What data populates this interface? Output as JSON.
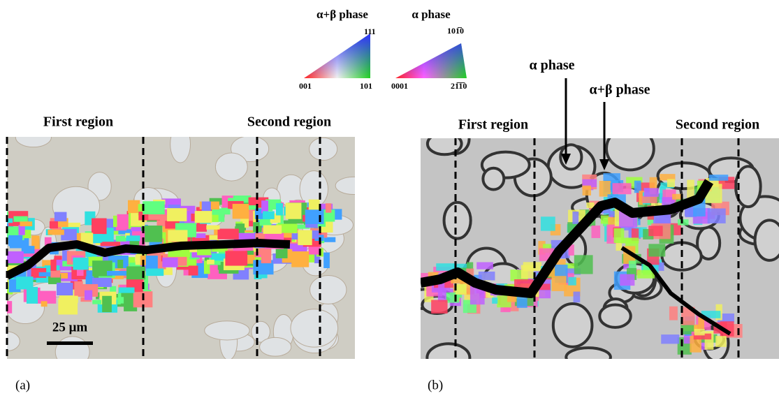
{
  "legend": {
    "items": [
      {
        "title": "α+β phase",
        "labels": [
          "111",
          "001",
          "101"
        ]
      },
      {
        "title": "α phase",
        "labels": [
          "101̅0",
          "0001",
          "21̅1̅0"
        ]
      }
    ]
  },
  "panels": [
    {
      "label": "(a)",
      "regions": [
        "First region",
        "Second region"
      ],
      "scale_bar": "25 μm"
    },
    {
      "label": "(b)",
      "regions": [
        "First region",
        "Second region"
      ],
      "annotations": [
        "α phase",
        "α+β phase"
      ]
    }
  ]
}
